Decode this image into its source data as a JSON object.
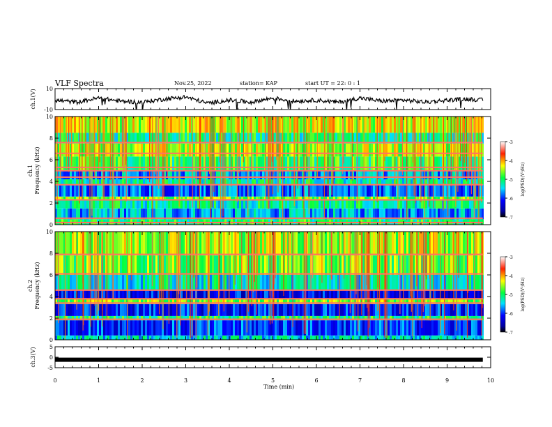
{
  "header": {
    "title": "VLF Spectra",
    "date": "Nov.25, 2022",
    "station": "station= KAP",
    "start": "start  UT =   22: 0   : 1"
  },
  "chart_data": [
    {
      "type": "line",
      "panel": "ch1-waveform",
      "ylabel": "ch.1(V)",
      "ylim": [
        -10,
        10
      ],
      "yticks": [
        "10",
        "-10"
      ],
      "x": [
        0,
        0.5,
        1,
        1.5,
        2,
        2.5,
        3,
        3.5,
        4,
        4.5,
        5,
        5.5,
        6,
        6.5,
        7,
        7.5,
        8,
        8.5,
        9,
        9.5,
        9.82
      ],
      "y": [
        -1,
        -3,
        1,
        -2,
        -3,
        0,
        2,
        -4,
        -1,
        -3,
        1,
        -2,
        -1,
        -3,
        1,
        -2,
        -1,
        -3,
        -1,
        0,
        -1
      ],
      "color": "#000000"
    },
    {
      "type": "heatmap",
      "panel": "ch1-spectrogram",
      "ylabel": "ch.1\nFrequency  (kHz)",
      "ylim": [
        0,
        10
      ],
      "yticks": [
        "0",
        "2",
        "4",
        "6",
        "8",
        "10"
      ],
      "background_bands_khz": [
        {
          "from": 0,
          "to": 0.5,
          "level": -5.0
        },
        {
          "from": 0.5,
          "to": 1.5,
          "level": -5.6
        },
        {
          "from": 1.5,
          "to": 2.3,
          "level": -5.2
        },
        {
          "from": 2.3,
          "to": 2.6,
          "level": -4.6
        },
        {
          "from": 2.6,
          "to": 3.7,
          "level": -5.8
        },
        {
          "from": 3.7,
          "to": 4.2,
          "level": -5.2
        },
        {
          "from": 4.2,
          "to": 5.0,
          "level": -5.6
        },
        {
          "from": 5.0,
          "to": 6.3,
          "level": -4.9
        },
        {
          "from": 6.3,
          "to": 7.5,
          "level": -4.5
        },
        {
          "from": 7.5,
          "to": 8.5,
          "level": -5.1
        },
        {
          "from": 8.5,
          "to": 10.0,
          "level": -4.4
        }
      ],
      "lines_khz": [
        0.2,
        0.6,
        2.3,
        3.7,
        4.4,
        5.0,
        5.3,
        6.6,
        7.6
      ],
      "colorbar": {
        "min": -7,
        "max": -3,
        "ticks": [
          "-3",
          "-4",
          "-5",
          "-6",
          "-7"
        ],
        "label": "log(PSD)(V²/Hz)"
      }
    },
    {
      "type": "heatmap",
      "panel": "ch2-spectrogram",
      "ylabel": "ch.2\nFrequency  (kHz)",
      "ylim": [
        0,
        10
      ],
      "yticks": [
        "0",
        "2",
        "4",
        "6",
        "8",
        "10"
      ],
      "background_bands_khz": [
        {
          "from": 0,
          "to": 0.4,
          "level": -5.4
        },
        {
          "from": 0.4,
          "to": 1.8,
          "level": -6.0
        },
        {
          "from": 1.8,
          "to": 2.2,
          "level": -5.0
        },
        {
          "from": 2.2,
          "to": 3.3,
          "level": -6.1
        },
        {
          "from": 3.3,
          "to": 3.8,
          "level": -4.6
        },
        {
          "from": 3.8,
          "to": 4.6,
          "level": -6.2
        },
        {
          "from": 4.6,
          "to": 6.0,
          "level": -5.3
        },
        {
          "from": 6.0,
          "to": 7.8,
          "level": -4.7
        },
        {
          "from": 7.8,
          "to": 10.0,
          "level": -4.5
        }
      ],
      "lines_khz": [
        1.9,
        3.4,
        3.8,
        4.6,
        6.1,
        7.9
      ],
      "colorbar": {
        "min": -7,
        "max": -3,
        "ticks": [
          "-3",
          "-4",
          "-5",
          "-6",
          "-7"
        ],
        "label": "log(PSD)(V²/Hz)"
      }
    },
    {
      "type": "line",
      "panel": "ch3-waveform",
      "ylabel": "ch.3(V)",
      "ylim": [
        -5,
        5
      ],
      "yticks": [
        "5",
        "0",
        "-5"
      ],
      "x": [
        0,
        9.82
      ],
      "y": [
        -1.2,
        -1.2
      ],
      "color": "#000000"
    }
  ],
  "xaxis": {
    "label": "Time  (min)",
    "ticks": [
      "0",
      "1",
      "2",
      "3",
      "4",
      "5",
      "6",
      "7",
      "8",
      "9",
      "10"
    ],
    "range": [
      0,
      10
    ]
  }
}
